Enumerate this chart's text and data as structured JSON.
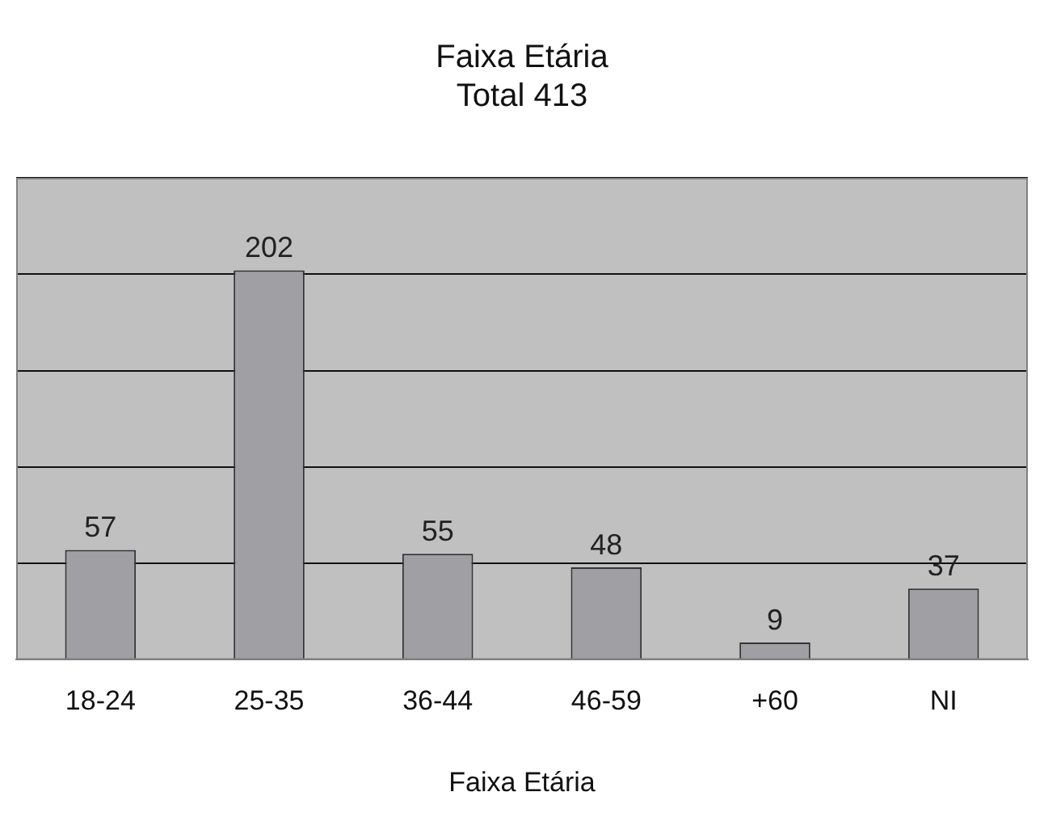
{
  "chart_data": {
    "type": "bar",
    "title": "Faixa Etária",
    "subtitle": "Total 413",
    "xlabel": "Faixa Etária",
    "categories": [
      "18-24",
      "25-35",
      "36-44",
      "46-59",
      "+60",
      "NI"
    ],
    "values": [
      57,
      202,
      55,
      48,
      9,
      37
    ],
    "color": "#a0a0a4",
    "ylim": [
      0,
      250
    ],
    "yticks": [
      {
        "value": 0,
        "label": null
      },
      {
        "value": 50,
        "label": null
      },
      {
        "value": 100,
        "label": null
      },
      {
        "value": 150,
        "label": null
      },
      {
        "value": 200,
        "label": null
      },
      {
        "value": 250,
        "label": null
      }
    ],
    "grid": "y",
    "tick_labels": "x",
    "legend": false,
    "data_labels": true
  }
}
